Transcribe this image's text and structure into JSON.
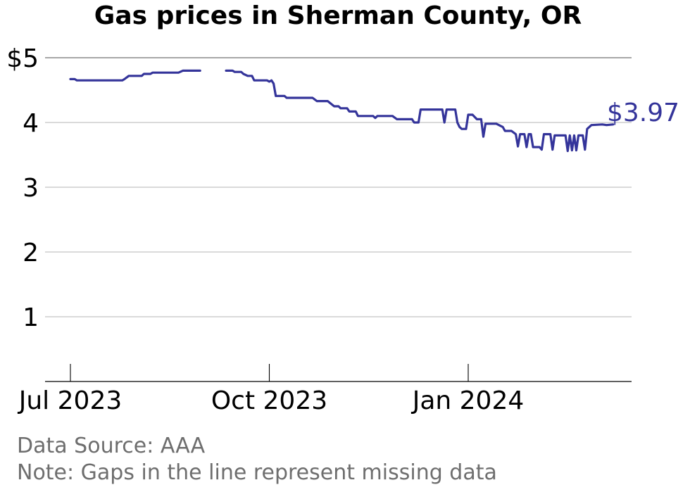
{
  "chart_data": {
    "type": "line",
    "title": "Gas prices in Sherman County, OR",
    "xlabel": "",
    "ylabel": "",
    "ylim": [
      0,
      5.35
    ],
    "x_ticks": [
      {
        "label": "Jul 2023",
        "date": "2023-07-01"
      },
      {
        "label": "Oct 2023",
        "date": "2023-10-01"
      },
      {
        "label": "Jan 2024",
        "date": "2024-01-01"
      }
    ],
    "y_ticks": [
      {
        "value": 1,
        "label": "1"
      },
      {
        "value": 2,
        "label": "2"
      },
      {
        "value": 3,
        "label": "3"
      },
      {
        "value": 4,
        "label": "4"
      },
      {
        "value": 5,
        "label": "$5"
      }
    ],
    "grid": true,
    "line_color": "#34349a",
    "end_label": "$3.97",
    "segments": [
      [
        [
          "2023-07-01",
          4.67
        ],
        [
          "2023-07-03",
          4.67
        ],
        [
          "2023-07-04",
          4.65
        ],
        [
          "2023-07-25",
          4.65
        ],
        [
          "2023-07-26",
          4.67
        ],
        [
          "2023-07-28",
          4.72
        ],
        [
          "2023-08-03",
          4.72
        ],
        [
          "2023-08-04",
          4.75
        ],
        [
          "2023-08-07",
          4.75
        ],
        [
          "2023-08-08",
          4.77
        ],
        [
          "2023-08-20",
          4.77
        ],
        [
          "2023-08-22",
          4.8
        ],
        [
          "2023-08-30",
          4.8
        ]
      ],
      [
        [
          "2023-09-11",
          4.8
        ],
        [
          "2023-09-14",
          4.8
        ],
        [
          "2023-09-15",
          4.78
        ],
        [
          "2023-09-18",
          4.78
        ],
        [
          "2023-09-19",
          4.75
        ],
        [
          "2023-09-21",
          4.72
        ],
        [
          "2023-09-23",
          4.72
        ],
        [
          "2023-09-24",
          4.65
        ],
        [
          "2023-09-30",
          4.65
        ],
        [
          "2023-10-01",
          4.63
        ],
        [
          "2023-10-02",
          4.65
        ],
        [
          "2023-10-03",
          4.6
        ],
        [
          "2023-10-04",
          4.41
        ],
        [
          "2023-10-08",
          4.41
        ],
        [
          "2023-10-09",
          4.38
        ],
        [
          "2023-10-21",
          4.38
        ],
        [
          "2023-10-23",
          4.33
        ],
        [
          "2023-10-28",
          4.33
        ],
        [
          "2023-10-31",
          4.25
        ],
        [
          "2023-11-02",
          4.25
        ],
        [
          "2023-11-03",
          4.22
        ],
        [
          "2023-11-06",
          4.22
        ],
        [
          "2023-11-07",
          4.17
        ],
        [
          "2023-11-10",
          4.17
        ],
        [
          "2023-11-11",
          4.1
        ],
        [
          "2023-11-18",
          4.1
        ],
        [
          "2023-11-19",
          4.07
        ],
        [
          "2023-11-20",
          4.1
        ],
        [
          "2023-11-27",
          4.1
        ],
        [
          "2023-11-29",
          4.05
        ],
        [
          "2023-12-06",
          4.05
        ],
        [
          "2023-12-07",
          4.0
        ],
        [
          "2023-12-09",
          4.0
        ],
        [
          "2023-12-10",
          4.2
        ],
        [
          "2023-12-20",
          4.2
        ],
        [
          "2023-12-21",
          4.0
        ],
        [
          "2023-12-22",
          4.2
        ],
        [
          "2023-12-26",
          4.2
        ],
        [
          "2023-12-27",
          4.0
        ],
        [
          "2023-12-28",
          3.93
        ],
        [
          "2023-12-29",
          3.9
        ],
        [
          "2023-12-31",
          3.9
        ],
        [
          "2024-01-01",
          4.12
        ],
        [
          "2024-01-03",
          4.12
        ],
        [
          "2024-01-05",
          4.05
        ],
        [
          "2024-01-07",
          4.05
        ],
        [
          "2024-01-08",
          3.78
        ],
        [
          "2024-01-09",
          3.98
        ],
        [
          "2024-01-14",
          3.98
        ],
        [
          "2024-01-17",
          3.93
        ],
        [
          "2024-01-18",
          3.87
        ],
        [
          "2024-01-21",
          3.87
        ],
        [
          "2024-01-23",
          3.82
        ],
        [
          "2024-01-24",
          3.63
        ],
        [
          "2024-01-25",
          3.82
        ],
        [
          "2024-01-27",
          3.82
        ],
        [
          "2024-01-28",
          3.62
        ],
        [
          "2024-01-29",
          3.82
        ],
        [
          "2024-01-30",
          3.82
        ],
        [
          "2024-01-31",
          3.62
        ],
        [
          "2024-02-03",
          3.62
        ],
        [
          "2024-02-04",
          3.58
        ],
        [
          "2024-02-05",
          3.82
        ],
        [
          "2024-02-08",
          3.82
        ],
        [
          "2024-02-09",
          3.58
        ],
        [
          "2024-02-10",
          3.8
        ],
        [
          "2024-02-15",
          3.8
        ],
        [
          "2024-02-16",
          3.56
        ],
        [
          "2024-02-17",
          3.8
        ],
        [
          "2024-02-18",
          3.57
        ],
        [
          "2024-02-19",
          3.8
        ],
        [
          "2024-02-20",
          3.57
        ],
        [
          "2024-02-21",
          3.8
        ],
        [
          "2024-02-23",
          3.8
        ],
        [
          "2024-02-24",
          3.58
        ],
        [
          "2024-02-25",
          3.9
        ],
        [
          "2024-02-27",
          3.96
        ],
        [
          "2024-03-03",
          3.97
        ],
        [
          "2024-03-05",
          3.96
        ],
        [
          "2024-03-08",
          3.97
        ]
      ]
    ]
  },
  "footer": {
    "source": "Data Source: AAA",
    "note": "Note: Gaps in the line represent missing data"
  }
}
